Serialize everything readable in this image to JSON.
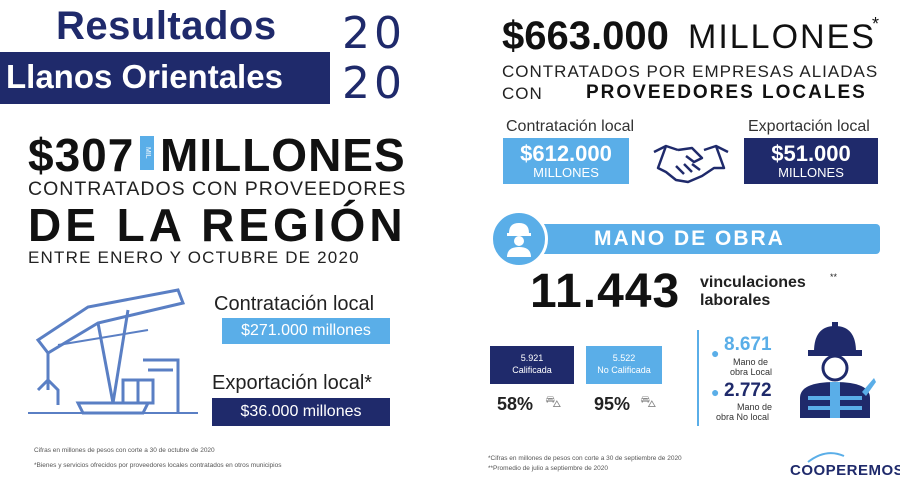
{
  "left": {
    "title": "Resultados",
    "subtitle": "Llanos Orientales",
    "year_top": "20",
    "year_bottom": "20",
    "amount": "$307",
    "mil_tag": "MIL",
    "millones": "MILLONES",
    "contratados": "CONTRATADOS CON PROVEEDORES",
    "region": "DE LA REGIÓN",
    "period": "ENTRE ENERO Y OCTUBRE DE 2020",
    "contratacion_label": "Contratación local",
    "contratacion_value": "$271.000 millones",
    "exportacion_label": "Exportación local*",
    "exportacion_value": "$36.000 millones",
    "note1": "Cifras en millones de pesos con corte a 30 de octubre de 2020",
    "note2": "*Bienes y servicios ofrecidos por proveedores locales contratados en otros municipios",
    "icon": "oil-pump-icon"
  },
  "right": {
    "amount": "$663.000",
    "millones": "MILLONES",
    "star": "*",
    "line1": "CONTRATADOS POR EMPRESAS ALIADAS",
    "line2_a": "CON",
    "line2_b": "PROVEEDORES LOCALES",
    "contratacion_label": "Contratación local",
    "contratacion_value": "$612.000",
    "contratacion_unit": "MILLONES",
    "exportacion_label": "Exportación local",
    "exportacion_value": "$51.000",
    "exportacion_unit": "MILLONES",
    "mano_de_obra": "MANO DE OBRA",
    "vinculaciones_number": "11.443",
    "vinculaciones_label": "vinculaciones",
    "vinculaciones_star": "**",
    "laborales": "laborales",
    "calificada_number": "5.921",
    "calificada_label": "Calificada",
    "no_calificada_number": "5.522",
    "no_calificada_label": "No Calificada",
    "pct_calificada": "58%",
    "pct_no_calificada": "95%",
    "local_number": "8.671",
    "local_label_1": "Mano de",
    "local_label_2": "obra Local",
    "nolocal_number": "2.772",
    "nolocal_label_1": "Mano de",
    "nolocal_label_2": "obra No local",
    "note1": "*Cifras en millones de pesos con corte a 30 de septiembre de 2020",
    "note2": "**Promedio de julio a septiembre de 2020",
    "logo": "COOPEREMOS",
    "colors": {
      "navy": "#1f2a6b",
      "light_blue": "#5aaee8"
    },
    "icons": [
      "handshake-icon",
      "worker-icon",
      "worker-helmet-icon"
    ]
  }
}
